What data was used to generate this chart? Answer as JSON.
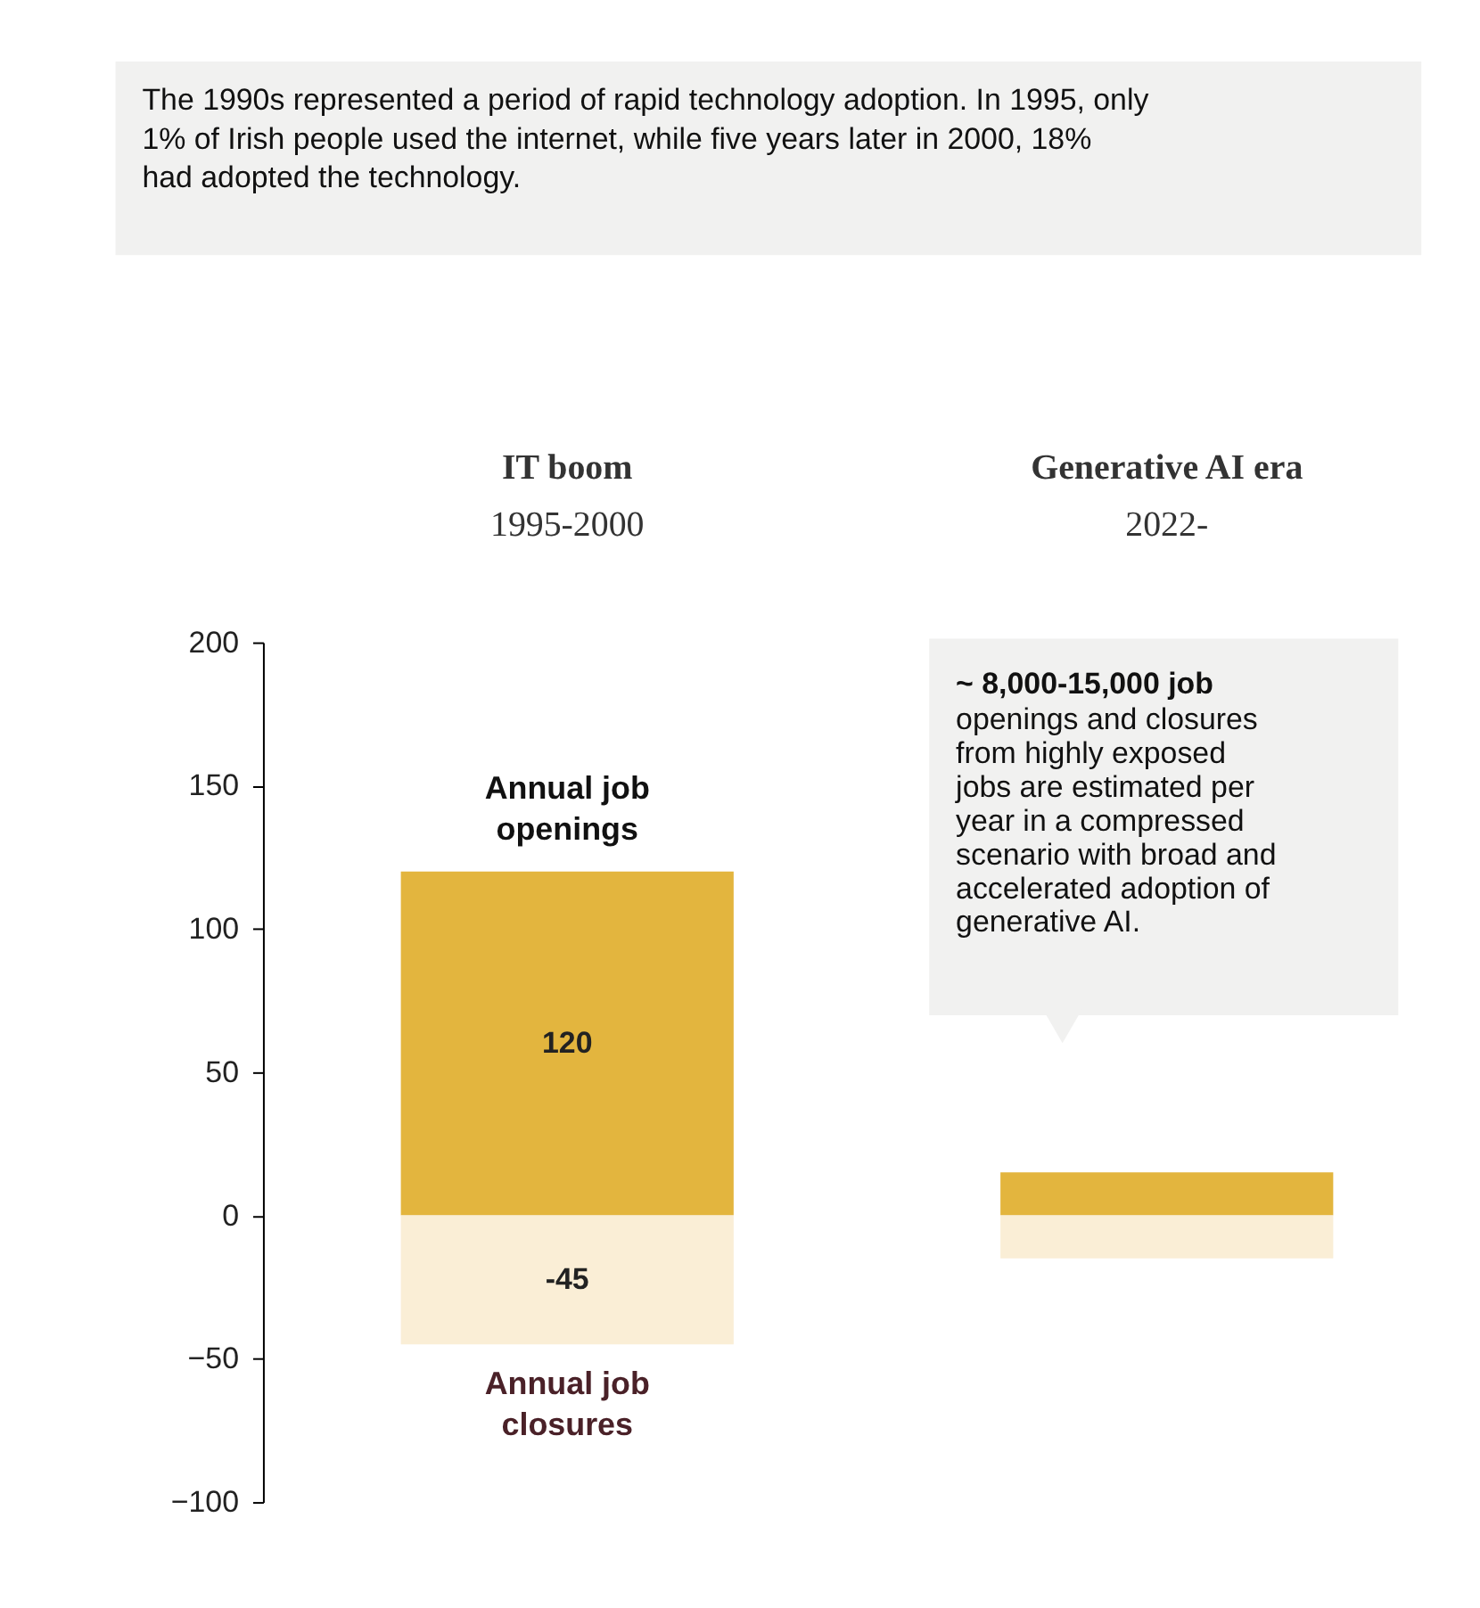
{
  "chart_data": {
    "type": "bar",
    "stacked": true,
    "categories": [
      "IT boom",
      "Generative AI era"
    ],
    "series": [
      {
        "name": "Annual job openings",
        "color": "#e3b53e",
        "values": [
          120,
          15
        ],
        "value_labels": [
          "120",
          null
        ]
      },
      {
        "name": "Annual job closures",
        "color": "#faeed6",
        "values": [
          -45,
          -15
        ],
        "value_labels": [
          "-45",
          null
        ]
      }
    ],
    "ylim": [
      -100,
      200
    ],
    "yticks": [
      -100,
      -50,
      0,
      50,
      100,
      150,
      200
    ],
    "grid": false,
    "legend": false,
    "annotations": [
      "The 1990s represented a period of rapid technology adoption. In 1995, only 1% of Irish people used the internet, while five years later in 2000, 18% had adopted the technology.",
      "1995-2000",
      "2022-",
      "~ 8,000-15,000 job openings and closures from highly exposed jobs are estimated per year in a compressed scenario with broad and accelerated adoption of generative AI."
    ]
  }
}
